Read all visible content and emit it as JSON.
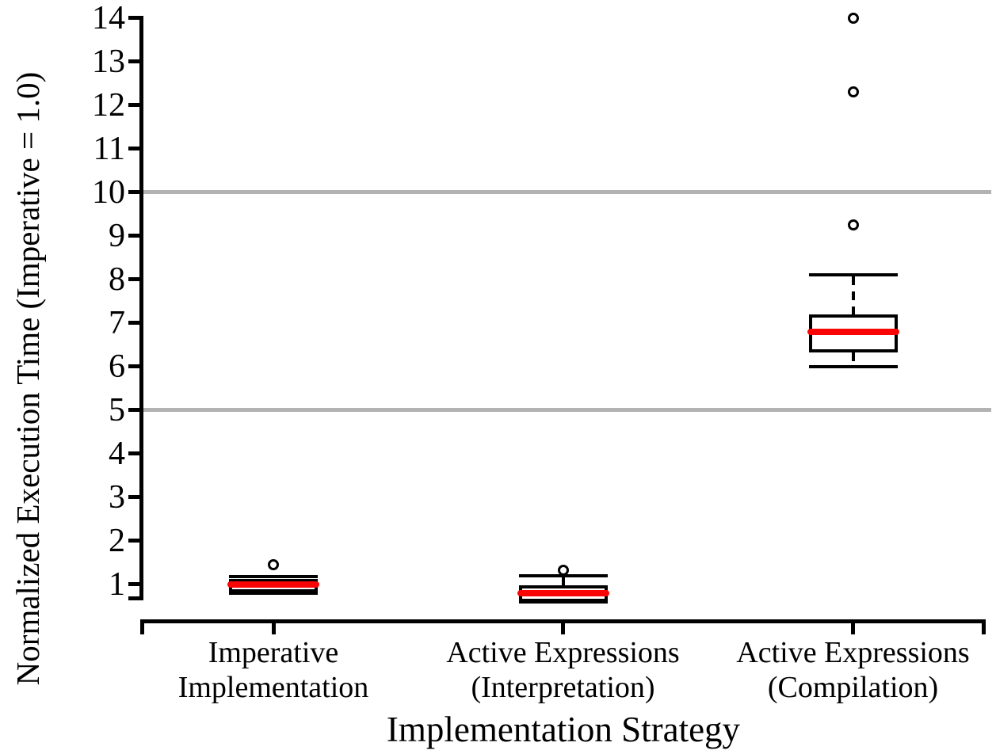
{
  "figure": {
    "background_color": "#ffffff",
    "axis_color": "#000000",
    "grid_color": "#b2b2b2",
    "median_color": "#f90505",
    "text_color": "#000000"
  },
  "chart_data": {
    "type": "boxplot",
    "title": "",
    "xlabel": "Implementation Strategy",
    "ylabel": "Normalized Execution Time (Imperative = 1.0)",
    "ylim": [
      0.65,
      14
    ],
    "yticks": [
      1,
      2,
      3,
      4,
      5,
      6,
      7,
      8,
      9,
      10,
      11,
      12,
      13,
      14
    ],
    "gridlines_y": [
      5,
      10
    ],
    "grid_on": true,
    "legend": null,
    "boxes": [
      {
        "category_lines": [
          "Imperative",
          "Implementation"
        ],
        "whisker_low": 0.8,
        "q1": 0.85,
        "median": 1.0,
        "q3": 1.08,
        "whisker_high": 1.18,
        "outliers": [
          1.45
        ]
      },
      {
        "category_lines": [
          "Active Expressions",
          "(Interpretation)"
        ],
        "whisker_low": 0.6,
        "q1": 0.63,
        "median": 0.8,
        "q3": 0.93,
        "whisker_high": 1.2,
        "outliers": [
          1.32
        ]
      },
      {
        "category_lines": [
          "Active Expressions",
          "(Compilation)"
        ],
        "whisker_low": 6.0,
        "q1": 6.35,
        "median": 6.8,
        "q3": 7.15,
        "whisker_high": 8.1,
        "outliers": [
          9.25,
          12.3,
          14.0
        ]
      }
    ]
  }
}
